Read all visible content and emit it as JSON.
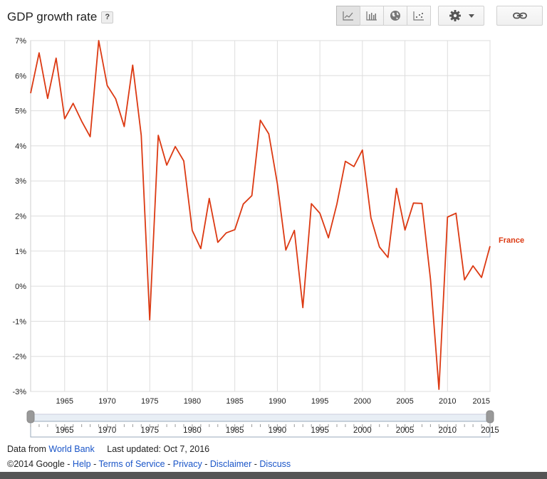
{
  "header": {
    "title": "GDP growth rate",
    "help_label": "?"
  },
  "toolbar": {
    "chart_types": [
      {
        "name": "line-chart-icon",
        "active": true
      },
      {
        "name": "bar-chart-icon",
        "active": false
      },
      {
        "name": "map-globe-icon",
        "active": false
      },
      {
        "name": "scatter-chart-icon",
        "active": false
      }
    ],
    "settings_icon": "gear-icon",
    "link_icon": "link-icon"
  },
  "chart_data": {
    "type": "line",
    "title": "GDP growth rate",
    "xlabel": "",
    "ylabel": "",
    "xlim": [
      1961,
      2015
    ],
    "ylim": [
      -3,
      7
    ],
    "y_ticks": [
      "-3%",
      "-2%",
      "-1%",
      "0%",
      "1%",
      "2%",
      "3%",
      "4%",
      "5%",
      "6%",
      "7%"
    ],
    "x_ticks": [
      "1965",
      "1970",
      "1975",
      "1980",
      "1985",
      "1990",
      "1995",
      "2000",
      "2005",
      "2010",
      "2015"
    ],
    "grid": true,
    "series": [
      {
        "name": "France",
        "color": "#dc3912",
        "x": [
          1961,
          1962,
          1963,
          1964,
          1965,
          1966,
          1967,
          1968,
          1969,
          1970,
          1971,
          1972,
          1973,
          1974,
          1975,
          1976,
          1977,
          1978,
          1979,
          1980,
          1981,
          1982,
          1983,
          1984,
          1985,
          1986,
          1987,
          1988,
          1989,
          1990,
          1991,
          1992,
          1993,
          1994,
          1995,
          1996,
          1997,
          1998,
          1999,
          2000,
          2001,
          2002,
          2003,
          2004,
          2005,
          2006,
          2007,
          2008,
          2009,
          2010,
          2011,
          2012,
          2013,
          2014,
          2015
        ],
        "values": [
          5.5,
          6.65,
          5.35,
          6.5,
          4.77,
          5.21,
          4.7,
          4.26,
          7.0,
          5.72,
          5.34,
          4.55,
          6.3,
          4.3,
          -0.96,
          4.3,
          3.45,
          3.98,
          3.57,
          1.59,
          1.07,
          2.5,
          1.25,
          1.52,
          1.61,
          2.34,
          2.58,
          4.73,
          4.34,
          2.92,
          1.03,
          1.59,
          -0.61,
          2.35,
          2.08,
          1.38,
          2.34,
          3.56,
          3.41,
          3.88,
          1.95,
          1.12,
          0.82,
          2.79,
          1.6,
          2.37,
          2.36,
          0.2,
          -2.94,
          1.97,
          2.08,
          0.18,
          0.58,
          0.25,
          1.14
        ]
      }
    ]
  },
  "range_slider": {
    "x_ticks": [
      "1965",
      "1970",
      "1975",
      "1980",
      "1985",
      "1990",
      "1995",
      "2000",
      "2005",
      "2010",
      "2015"
    ],
    "start": 1961,
    "end": 2015
  },
  "footer": {
    "data_from": "Data from",
    "source_link": "World Bank",
    "last_updated": "Last updated: Oct 7, 2016",
    "copyright": "©2014 Google -",
    "links": [
      "Help",
      "Terms of Service",
      "Privacy",
      "Disclaimer",
      "Discuss"
    ],
    "separator": "-"
  }
}
